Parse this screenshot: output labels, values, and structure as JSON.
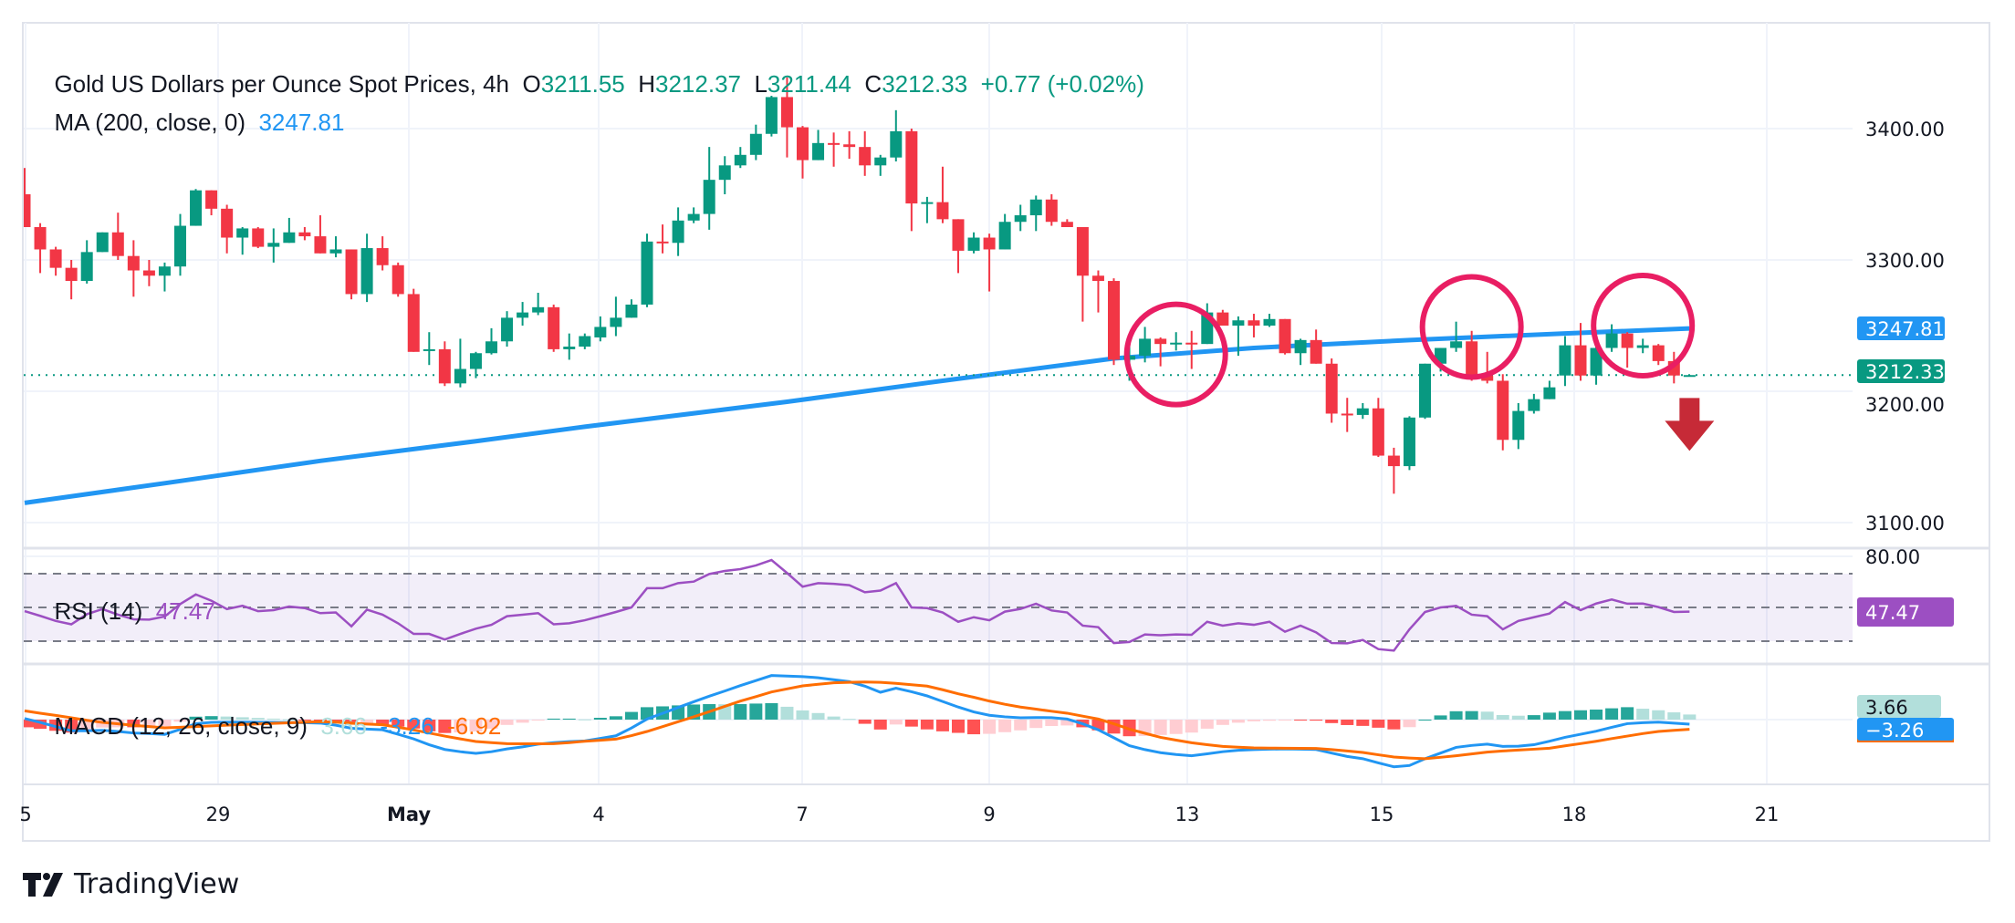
{
  "header": {
    "title": "Gold US Dollars per Ounce Spot Prices, 4h",
    "o_label": "O",
    "o_value": "3211.55",
    "h_label": "H",
    "h_value": "3212.37",
    "l_label": "L",
    "l_value": "3211.44",
    "c_label": "C",
    "c_value": "3212.33",
    "change": "+0.77 (+0.02%)",
    "ma_label": "MA (200, close, 0)",
    "ma_value": "3247.81"
  },
  "rsi_legend": {
    "label": "RSI (14)",
    "value": "47.47"
  },
  "macd_legend": {
    "label": "MACD (12, 26, close, 9)",
    "hist": "3.66",
    "macd": "-3.26",
    "signal": "-6.92"
  },
  "price_axis": [
    "3400.00",
    "3300.00",
    "3200.00",
    "3100.00"
  ],
  "rsi_axis": [
    "80.00"
  ],
  "tags": {
    "ma": "3247.81",
    "close": "3212.33",
    "rsi": "47.47",
    "hist": "3.66",
    "macd": "−3.26"
  },
  "time_axis": [
    "5",
    "29",
    "May",
    "4",
    "7",
    "9",
    "13",
    "15",
    "18",
    "21"
  ],
  "brand": "TradingView",
  "colors": {
    "up": "#089981",
    "down": "#f23645",
    "ma": "#2196f3",
    "rsi": "#9c4fc2",
    "macd": "#2196f3",
    "signal": "#ff6d00",
    "annotation": "#e91e63",
    "arrow": "#c62a37"
  },
  "chart_data": {
    "type": "candlestick",
    "timeframe": "4h",
    "ylim": [
      3080,
      3450
    ],
    "y_ticks": [
      3100,
      3200,
      3300,
      3400
    ],
    "grid": true,
    "ohlc": [
      [
        3350,
        3370,
        3325,
        3325
      ],
      [
        3325,
        3328,
        3290,
        3308
      ],
      [
        3308,
        3310,
        3288,
        3294
      ],
      [
        3294,
        3300,
        3270,
        3284
      ],
      [
        3284,
        3315,
        3282,
        3306
      ],
      [
        3306,
        3321,
        3306,
        3321
      ],
      [
        3321,
        3336,
        3300,
        3303
      ],
      [
        3303,
        3315,
        3272,
        3292
      ],
      [
        3292,
        3300,
        3280,
        3288
      ],
      [
        3288,
        3298,
        3276,
        3295
      ],
      [
        3295,
        3335,
        3288,
        3326
      ],
      [
        3326,
        3354,
        3326,
        3353
      ],
      [
        3353,
        3353,
        3334,
        3339
      ],
      [
        3339,
        3342,
        3305,
        3317
      ],
      [
        3317,
        3325,
        3304,
        3324
      ],
      [
        3324,
        3325,
        3309,
        3310
      ],
      [
        3310,
        3324,
        3298,
        3313
      ],
      [
        3313,
        3332,
        3313,
        3321
      ],
      [
        3321,
        3325,
        3315,
        3318
      ],
      [
        3318,
        3334,
        3305,
        3305
      ],
      [
        3305,
        3318,
        3302,
        3308
      ],
      [
        3308,
        3308,
        3270,
        3274
      ],
      [
        3274,
        3320,
        3268,
        3309
      ],
      [
        3309,
        3318,
        3292,
        3296
      ],
      [
        3296,
        3298,
        3272,
        3274
      ],
      [
        3274,
        3278,
        3230,
        3230
      ],
      [
        3231,
        3245,
        3220,
        3232
      ],
      [
        3232,
        3238,
        3204,
        3206
      ],
      [
        3206,
        3240,
        3203,
        3217
      ],
      [
        3217,
        3230,
        3210,
        3229
      ],
      [
        3229,
        3248,
        3228,
        3238
      ],
      [
        3238,
        3261,
        3234,
        3256
      ],
      [
        3256,
        3268,
        3250,
        3260
      ],
      [
        3260,
        3275,
        3258,
        3264
      ],
      [
        3264,
        3266,
        3230,
        3232
      ],
      [
        3232,
        3244,
        3224,
        3234
      ],
      [
        3234,
        3244,
        3232,
        3242
      ],
      [
        3241,
        3257,
        3238,
        3249
      ],
      [
        3249,
        3272,
        3242,
        3256
      ],
      [
        3256,
        3270,
        3256,
        3266
      ],
      [
        3266,
        3320,
        3264,
        3314
      ],
      [
        3314,
        3327,
        3305,
        3313
      ],
      [
        3313,
        3340,
        3303,
        3330
      ],
      [
        3330,
        3340,
        3328,
        3335
      ],
      [
        3335,
        3386,
        3323,
        3361
      ],
      [
        3361,
        3379,
        3350,
        3372
      ],
      [
        3372,
        3386,
        3370,
        3380
      ],
      [
        3380,
        3403,
        3376,
        3396
      ],
      [
        3396,
        3425,
        3394,
        3424
      ],
      [
        3424,
        3439,
        3378,
        3401
      ],
      [
        3401,
        3402,
        3362,
        3376
      ],
      [
        3376,
        3399,
        3376,
        3389
      ],
      [
        3389,
        3397,
        3371,
        3388
      ],
      [
        3388,
        3398,
        3377,
        3386
      ],
      [
        3386,
        3398,
        3364,
        3372
      ],
      [
        3372,
        3380,
        3364,
        3378
      ],
      [
        3378,
        3414,
        3375,
        3398
      ],
      [
        3398,
        3400,
        3322,
        3343
      ],
      [
        3343,
        3348,
        3328,
        3344
      ],
      [
        3344,
        3371,
        3328,
        3331
      ],
      [
        3331,
        3331,
        3290,
        3307
      ],
      [
        3307,
        3321,
        3305,
        3317
      ],
      [
        3317,
        3320,
        3276,
        3308
      ],
      [
        3308,
        3335,
        3308,
        3329
      ],
      [
        3329,
        3342,
        3322,
        3334
      ],
      [
        3334,
        3349,
        3322,
        3346
      ],
      [
        3346,
        3350,
        3326,
        3329
      ],
      [
        3329,
        3331,
        3325,
        3325
      ],
      [
        3325,
        3325,
        3253,
        3288
      ],
      [
        3288,
        3292,
        3260,
        3284
      ],
      [
        3284,
        3286,
        3220,
        3224
      ],
      [
        3224,
        3240,
        3208,
        3227
      ],
      [
        3227,
        3249,
        3222,
        3240
      ],
      [
        3240,
        3241,
        3219,
        3236
      ],
      [
        3236,
        3245,
        3231,
        3237
      ],
      [
        3237,
        3246,
        3217,
        3236
      ],
      [
        3236,
        3267,
        3236,
        3260
      ],
      [
        3260,
        3262,
        3250,
        3250
      ],
      [
        3250,
        3257,
        3227,
        3254
      ],
      [
        3254,
        3259,
        3241,
        3250
      ],
      [
        3250,
        3259,
        3249,
        3255
      ],
      [
        3255,
        3255,
        3228,
        3229
      ],
      [
        3229,
        3240,
        3220,
        3239
      ],
      [
        3239,
        3247,
        3221,
        3221
      ],
      [
        3221,
        3225,
        3176,
        3183
      ],
      [
        3183,
        3195,
        3169,
        3182
      ],
      [
        3182,
        3191,
        3179,
        3187
      ],
      [
        3187,
        3195,
        3150,
        3151
      ],
      [
        3151,
        3157,
        3122,
        3143
      ],
      [
        3143,
        3181,
        3140,
        3180
      ],
      [
        3180,
        3221,
        3179,
        3221
      ],
      [
        3221,
        3233,
        3215,
        3233
      ],
      [
        3233,
        3253,
        3230,
        3238
      ],
      [
        3238,
        3246,
        3208,
        3212
      ],
      [
        3212,
        3230,
        3206,
        3208
      ],
      [
        3208,
        3213,
        3155,
        3163
      ],
      [
        3163,
        3191,
        3156,
        3185
      ],
      [
        3185,
        3198,
        3183,
        3194
      ],
      [
        3194,
        3208,
        3194,
        3203
      ],
      [
        3212,
        3242,
        3204,
        3235
      ],
      [
        3235,
        3252,
        3208,
        3212
      ],
      [
        3212,
        3236,
        3205,
        3233
      ],
      [
        3233,
        3251,
        3230,
        3244
      ],
      [
        3244,
        3245,
        3218,
        3233
      ],
      [
        3233,
        3240,
        3229,
        3235
      ],
      [
        3235,
        3236,
        3220,
        3223
      ],
      [
        3223,
        3230,
        3206,
        3212
      ],
      [
        3211.55,
        3212.37,
        3211.44,
        3212.33
      ]
    ],
    "ma200": [
      [
        1,
        3115
      ],
      [
        10,
        3130
      ],
      [
        20,
        3147
      ],
      [
        30,
        3162
      ],
      [
        37,
        3173
      ],
      [
        50,
        3192
      ],
      [
        60,
        3208
      ],
      [
        71,
        3225
      ],
      [
        80,
        3233
      ],
      [
        90,
        3239
      ],
      [
        100,
        3244
      ],
      [
        108,
        3247.81
      ]
    ],
    "last_close": 3212.33,
    "rsi": {
      "ylim": [
        10,
        85
      ],
      "bands": [
        70,
        50,
        30
      ],
      "values": [
        47.8,
        45,
        42,
        40,
        46,
        49,
        45.7,
        43,
        42.8,
        44.6,
        52,
        57.7,
        54,
        49,
        51,
        47.8,
        48.4,
        50.5,
        49.6,
        46.6,
        47,
        38.8,
        48.7,
        45.7,
        40.6,
        34.3,
        34.3,
        31,
        34.3,
        37.4,
        39.7,
        44.8,
        45.7,
        46.6,
        40,
        40.6,
        42.4,
        44.8,
        47.3,
        50,
        61.4,
        61.4,
        64.4,
        65.3,
        69.8,
        71.6,
        72.7,
        74.9,
        78.1,
        70.4,
        62.3,
        64.4,
        64,
        63.2,
        59,
        60,
        64.4,
        50,
        49.6,
        47,
        41.5,
        44.2,
        42.4,
        47.5,
        49.1,
        52.2,
        48.2,
        47,
        39.2,
        38.3,
        28.9,
        29.5,
        34,
        33.5,
        34,
        33.8,
        41.5,
        39.2,
        40.6,
        39.7,
        41.5,
        35.6,
        39.2,
        35.2,
        28.9,
        28.7,
        30.7,
        25.3,
        24.4,
        37,
        47.3,
        50,
        50.9,
        45.7,
        44.8,
        37,
        42,
        44.2,
        46.4,
        53.2,
        48.4,
        52.3,
        54.7,
        52.2,
        52.3,
        50.2,
        47.3,
        47.47
      ]
    },
    "macd": {
      "macd": [
        0.8,
        -2,
        -5,
        -8,
        -8,
        -7.7,
        -8.5,
        -9.6,
        -10,
        -10.6,
        -7,
        -2.9,
        -2,
        -1.8,
        -1.8,
        -1.9,
        -2,
        -2.1,
        -2.2,
        -2.5,
        -4,
        -6.2,
        -6.8,
        -7.3,
        -10.5,
        -13.8,
        -18,
        -21.4,
        -23,
        -24.2,
        -23,
        -21,
        -19.5,
        -17.6,
        -16.5,
        -15.8,
        -15.3,
        -13.5,
        -11.6,
        -6,
        0.4,
        4.5,
        8.7,
        12.8,
        16.8,
        20.5,
        24.4,
        28,
        31.6,
        31.2,
        30.8,
        30,
        28.6,
        27.2,
        24,
        19.6,
        22.5,
        20,
        17,
        13,
        9,
        5.5,
        3.1,
        2,
        1.3,
        1.5,
        1.4,
        0.4,
        -3,
        -7.3,
        -13,
        -18.7,
        -21.5,
        -23.7,
        -25,
        -25.9,
        -24.5,
        -23,
        -22,
        -21.5,
        -21.2,
        -21,
        -21.2,
        -21.4,
        -24,
        -26.4,
        -28,
        -31,
        -33.8,
        -32.9,
        -28,
        -24,
        -19.9,
        -18.5,
        -17.6,
        -19.2,
        -19,
        -18,
        -15.5,
        -12.7,
        -10.5,
        -8.3,
        -5.5,
        -2.9,
        -2.2,
        -1.8,
        -2.5,
        -3.26
      ],
      "signal": [
        6.3,
        4.6,
        3,
        1.3,
        -0.5,
        -2,
        -3,
        -4.1,
        -5,
        -5.9,
        -5.5,
        -5,
        -4.5,
        -4,
        -3.5,
        -3.1,
        -2.7,
        -2.3,
        -1.9,
        -1.5,
        -1.8,
        -2.6,
        -3.2,
        -3.7,
        -5.5,
        -7.4,
        -9.6,
        -11.8,
        -13.8,
        -15.7,
        -16.5,
        -17.2,
        -17.3,
        -17.3,
        -17.2,
        -16.5,
        -15.5,
        -14.8,
        -14,
        -11.5,
        -8.5,
        -5,
        -1.5,
        2,
        5.7,
        9.5,
        13.3,
        16.5,
        19.8,
        22,
        24.2,
        25.3,
        26.4,
        26.7,
        27,
        26.7,
        26,
        25,
        24,
        21.4,
        18.5,
        16,
        13.3,
        11,
        9,
        7.5,
        6,
        4.6,
        2.5,
        0.4,
        -3,
        -6.8,
        -9.8,
        -12.7,
        -14.7,
        -16.6,
        -18,
        -19.2,
        -19.8,
        -20.3,
        -20.4,
        -20.5,
        -20.6,
        -20.7,
        -21.5,
        -22.5,
        -23.5,
        -25.2,
        -26.8,
        -27.5,
        -28,
        -27,
        -25.9,
        -24.6,
        -23.3,
        -22.5,
        -21.8,
        -21.2,
        -20.5,
        -18.8,
        -17.2,
        -15.5,
        -13.6,
        -11.8,
        -10,
        -8.5,
        -7.7,
        -6.92
      ],
      "last_histogram": 3.66
    },
    "annotations": [
      {
        "type": "circle",
        "bar": 75,
        "price": 3228
      },
      {
        "type": "circle",
        "bar": 94,
        "price": 3249
      },
      {
        "type": "circle",
        "bar": 105,
        "price": 3250
      },
      {
        "type": "arrow-down",
        "bar": 108,
        "price": 3165
      }
    ]
  }
}
